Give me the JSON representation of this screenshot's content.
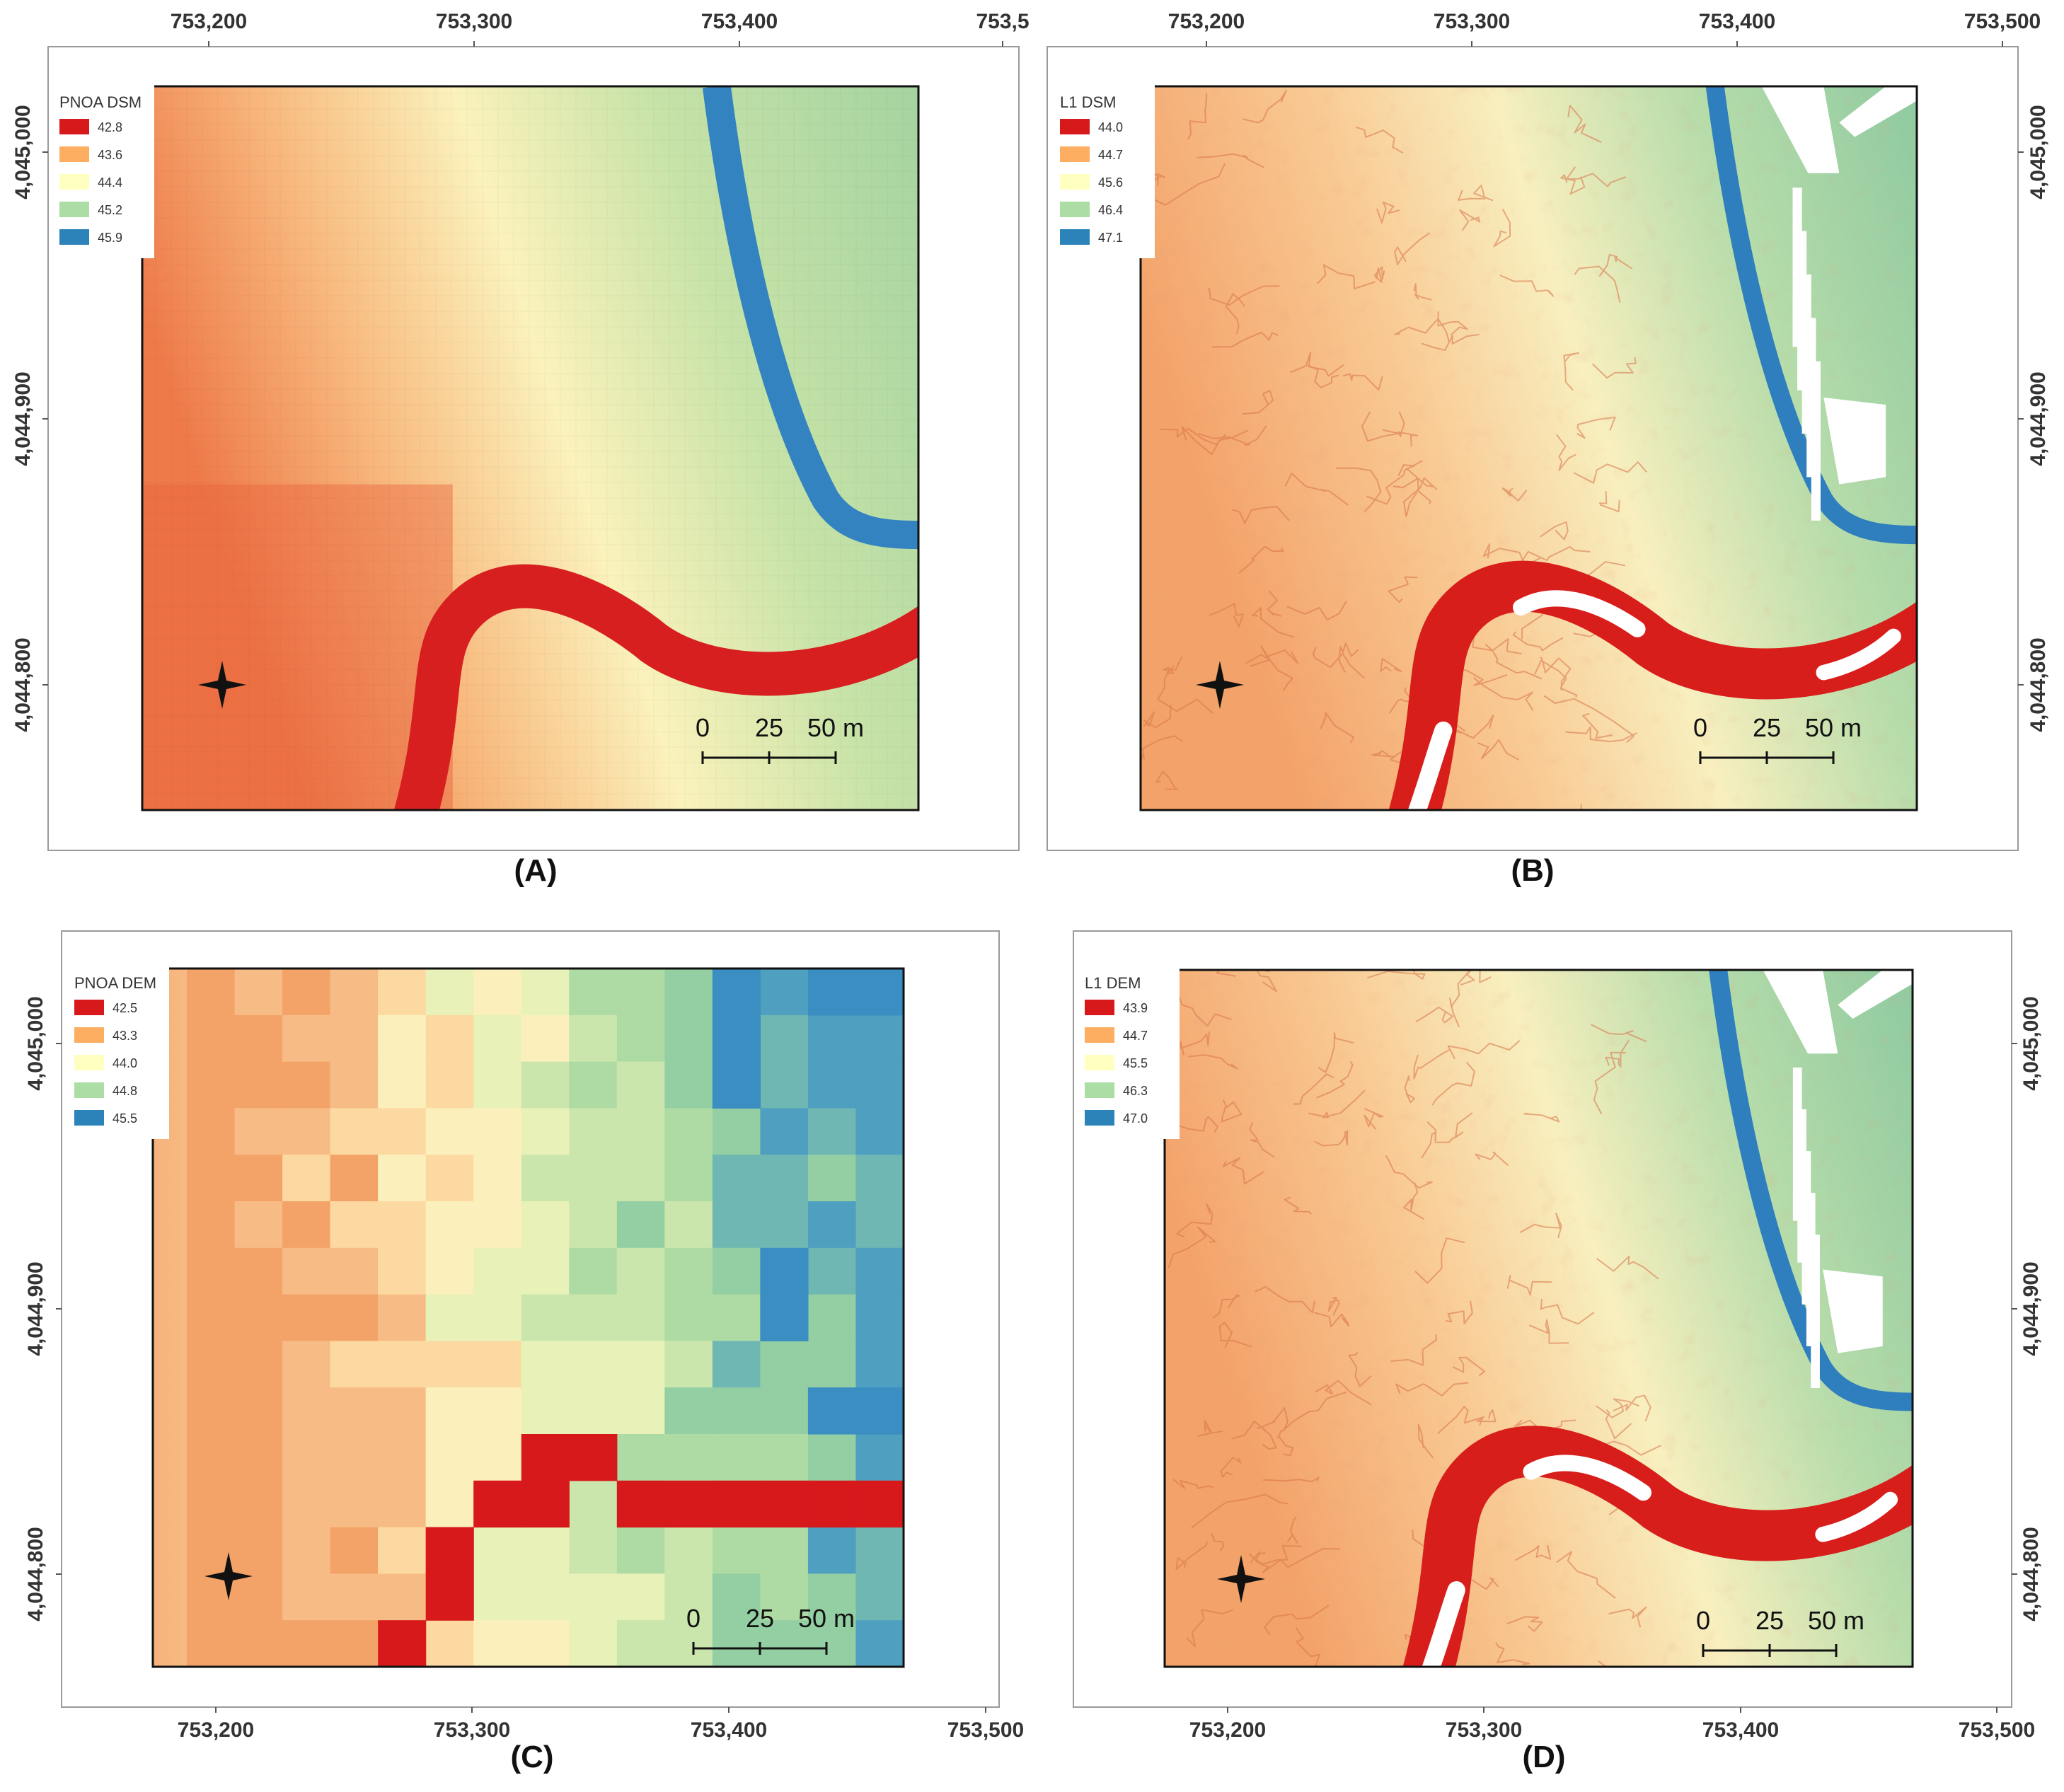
{
  "panels": [
    {
      "label": "(A)",
      "legend_title": "PNOA DSM",
      "legend": [
        {
          "value": "42.8",
          "color": "#d7191c"
        },
        {
          "value": "43.6",
          "color": "#fdae61"
        },
        {
          "value": "44.4",
          "color": "#ffffbf"
        },
        {
          "value": "45.2",
          "color": "#abdda4"
        },
        {
          "value": "45.9",
          "color": "#2b83ba"
        }
      ],
      "x_ticks": [
        "753,200",
        "753,300",
        "753,400",
        "753,5"
      ],
      "y_ticks": [
        "4,045,000",
        "4,044,900",
        "4,044,800"
      ],
      "x_axis_side": "top",
      "y_axis_side": "left",
      "resolution": "coarse",
      "scalebar": [
        "0",
        "25",
        "50 m"
      ]
    },
    {
      "label": "(B)",
      "legend_title": "L1 DSM",
      "legend": [
        {
          "value": "44.0",
          "color": "#d7191c"
        },
        {
          "value": "44.7",
          "color": "#fdae61"
        },
        {
          "value": "45.6",
          "color": "#ffffbf"
        },
        {
          "value": "46.4",
          "color": "#abdda4"
        },
        {
          "value": "47.1",
          "color": "#2b83ba"
        }
      ],
      "x_ticks": [
        "753,200",
        "753,300",
        "753,400",
        "753,500"
      ],
      "y_ticks": [
        "4,045,000",
        "4,044,900",
        "4,044,800"
      ],
      "x_axis_side": "top",
      "y_axis_side": "right",
      "resolution": "fine",
      "scalebar": [
        "0",
        "25",
        "50 m"
      ]
    },
    {
      "label": "(C)",
      "legend_title": "PNOA DEM",
      "legend": [
        {
          "value": "42.5",
          "color": "#d7191c"
        },
        {
          "value": "43.3",
          "color": "#fdae61"
        },
        {
          "value": "44.0",
          "color": "#ffffbf"
        },
        {
          "value": "44.8",
          "color": "#abdda4"
        },
        {
          "value": "45.5",
          "color": "#2b83ba"
        }
      ],
      "x_ticks": [
        "753,200",
        "753,300",
        "753,400",
        "753,500"
      ],
      "y_ticks": [
        "4,045,000",
        "4,044,900",
        "4,044,800"
      ],
      "x_axis_side": "bottom",
      "y_axis_side": "left",
      "resolution": "blocky",
      "scalebar": [
        "0",
        "25",
        "50 m"
      ]
    },
    {
      "label": "(D)",
      "legend_title": "L1 DEM",
      "legend": [
        {
          "value": "43.9",
          "color": "#d7191c"
        },
        {
          "value": "44.7",
          "color": "#fdae61"
        },
        {
          "value": "45.5",
          "color": "#ffffbf"
        },
        {
          "value": "46.3",
          "color": "#abdda4"
        },
        {
          "value": "47.0",
          "color": "#2b83ba"
        }
      ],
      "x_ticks": [
        "753,200",
        "753,300",
        "753,400",
        "753,500"
      ],
      "y_ticks": [
        "4,045,000",
        "4,044,900",
        "4,044,800"
      ],
      "x_axis_side": "bottom",
      "y_axis_side": "right",
      "resolution": "fine",
      "scalebar": [
        "0",
        "25",
        "50 m"
      ]
    }
  ]
}
